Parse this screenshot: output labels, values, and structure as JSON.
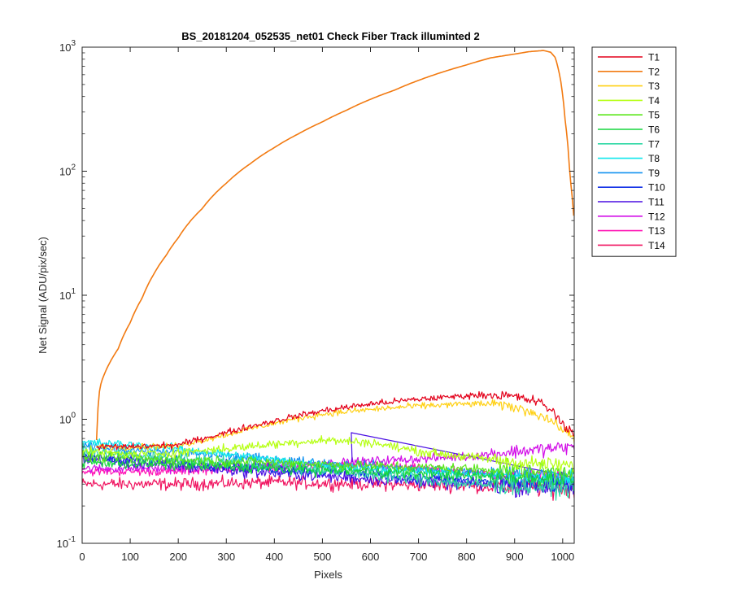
{
  "chart_data": {
    "type": "line",
    "title": "BS_20181204_052535_net01   Check Fiber     Track illuminted 2",
    "xlabel": "Pixels",
    "ylabel": "Net Signal (ADU/pix/sec)",
    "xlim": [
      0,
      1024
    ],
    "ylim": [
      0.1,
      1000
    ],
    "yscale": "log",
    "xticks": [
      0,
      100,
      200,
      300,
      400,
      500,
      600,
      700,
      800,
      900,
      1000
    ],
    "ytick_labels": [
      {
        "base": "10",
        "exp": "-1",
        "value": 0.1
      },
      {
        "base": "10",
        "exp": "0",
        "value": 1
      },
      {
        "base": "10",
        "exp": "1",
        "value": 10
      },
      {
        "base": "10",
        "exp": "2",
        "value": 100
      },
      {
        "base": "10",
        "exp": "3",
        "value": 1000
      }
    ],
    "grid": false,
    "legend_position": "outside-right",
    "series": [
      {
        "name": "T1",
        "color": "#e3001a",
        "noise": 0.05,
        "x": [
          30,
          100,
          200,
          300,
          400,
          500,
          600,
          700,
          800,
          850,
          900,
          950,
          980,
          1000,
          1024
        ],
        "y": [
          0.6,
          0.6,
          0.62,
          0.78,
          0.97,
          1.17,
          1.33,
          1.45,
          1.55,
          1.58,
          1.52,
          1.38,
          1.15,
          0.9,
          0.78
        ]
      },
      {
        "name": "T2",
        "color": "#f27a11",
        "noise": 0,
        "x": [
          30,
          35,
          40,
          50,
          75,
          100,
          125,
          150,
          175,
          200,
          250,
          300,
          350,
          400,
          450,
          500,
          550,
          600,
          650,
          700,
          750,
          800,
          850,
          900,
          930,
          960,
          975,
          985,
          995,
          1005,
          1015,
          1024
        ],
        "y": [
          0.68,
          1.6,
          2.0,
          2.5,
          3.7,
          6,
          9.5,
          15,
          21,
          29,
          50,
          80,
          115,
          155,
          200,
          250,
          310,
          380,
          450,
          540,
          630,
          720,
          820,
          880,
          920,
          940,
          910,
          820,
          560,
          260,
          90,
          38
        ]
      },
      {
        "name": "T3",
        "color": "#ffd014",
        "noise": 0.05,
        "x": [
          30,
          100,
          200,
          300,
          400,
          500,
          600,
          700,
          800,
          850,
          900,
          950,
          980,
          1000,
          1024
        ],
        "y": [
          0.6,
          0.6,
          0.61,
          0.75,
          0.93,
          1.1,
          1.2,
          1.28,
          1.33,
          1.33,
          1.25,
          1.1,
          0.95,
          0.82,
          0.72
        ]
      },
      {
        "name": "T4",
        "color": "#b6ff14",
        "noise": 0.07,
        "x": [
          0,
          100,
          200,
          300,
          400,
          500,
          600,
          700,
          800,
          900,
          1024
        ],
        "y": [
          0.55,
          0.52,
          0.54,
          0.58,
          0.63,
          0.68,
          0.65,
          0.55,
          0.5,
          0.45,
          0.42
        ]
      },
      {
        "name": "T5",
        "color": "#5ae61a",
        "noise": 0.08,
        "x": [
          0,
          200,
          400,
          600,
          800,
          1024
        ],
        "y": [
          0.5,
          0.47,
          0.45,
          0.42,
          0.4,
          0.38
        ]
      },
      {
        "name": "T6",
        "color": "#17d63e",
        "noise": 0.09,
        "x": [
          0,
          200,
          400,
          600,
          800,
          1024
        ],
        "y": [
          0.45,
          0.43,
          0.4,
          0.38,
          0.35,
          0.33
        ]
      },
      {
        "name": "T7",
        "color": "#2ed8a5",
        "noise": 0.1,
        "x": [
          0,
          200,
          400,
          600,
          800,
          1024
        ],
        "y": [
          0.55,
          0.48,
          0.42,
          0.36,
          0.3,
          0.28
        ]
      },
      {
        "name": "T8",
        "color": "#10e8ec",
        "noise": 0.07,
        "x": [
          0,
          100,
          200,
          300,
          400,
          500,
          600,
          800,
          1024
        ],
        "y": [
          0.65,
          0.62,
          0.58,
          0.52,
          0.47,
          0.43,
          0.4,
          0.36,
          0.34
        ]
      },
      {
        "name": "T9",
        "color": "#1393f0",
        "noise": 0.08,
        "x": [
          0,
          200,
          400,
          600,
          800,
          1024
        ],
        "y": [
          0.6,
          0.54,
          0.47,
          0.42,
          0.37,
          0.35
        ]
      },
      {
        "name": "T10",
        "color": "#1230e6",
        "noise": 0.09,
        "x": [
          0,
          200,
          400,
          600,
          800,
          1024
        ],
        "y": [
          0.5,
          0.45,
          0.4,
          0.36,
          0.32,
          0.3
        ]
      },
      {
        "name": "T11",
        "color": "#4a0fe2",
        "noise": 0.1,
        "x": [
          0,
          200,
          400,
          600,
          800,
          1024
        ],
        "y": [
          0.48,
          0.42,
          0.37,
          0.33,
          0.3,
          0.28
        ]
      },
      {
        "name": "T12",
        "color": "#d20fe8",
        "noise": 0.07,
        "x": [
          0,
          200,
          400,
          500,
          600,
          700,
          800,
          900,
          1024
        ],
        "y": [
          0.4,
          0.4,
          0.42,
          0.44,
          0.46,
          0.48,
          0.5,
          0.55,
          0.6
        ]
      },
      {
        "name": "T13",
        "color": "#ff14b4",
        "noise": 0.07,
        "x": [
          0,
          200,
          400,
          600,
          800,
          1024
        ],
        "y": [
          0.38,
          0.38,
          0.42,
          0.43,
          0.37,
          0.34
        ]
      },
      {
        "name": "T14",
        "color": "#f01460",
        "noise": 0.1,
        "x": [
          0,
          200,
          400,
          600,
          800,
          1024
        ],
        "y": [
          0.3,
          0.3,
          0.31,
          0.3,
          0.29,
          0.28
        ]
      }
    ]
  }
}
